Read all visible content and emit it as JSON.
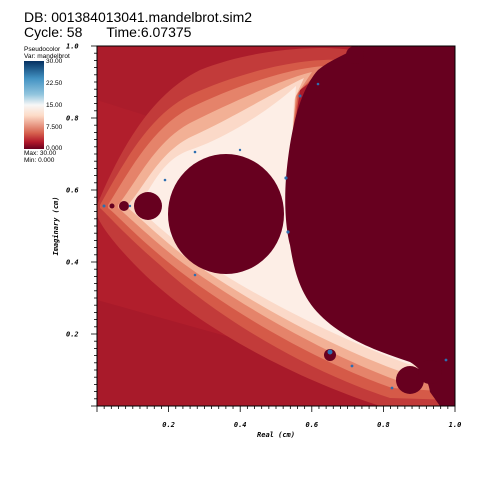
{
  "header": {
    "db_label": "DB: 001384013041.mandelbrot.sim2",
    "cycle_label": "Cycle: 58",
    "time_label": "Time:6.07375"
  },
  "legend": {
    "title": "Pseudocolor",
    "var_label": "Var: mandelbrot",
    "ticks": [
      "30.00",
      "22.50",
      "15.00",
      "7.500",
      "0.000"
    ],
    "max_label": "Max: 30.00",
    "min_label": "Min: 0.000"
  },
  "chart_data": {
    "type": "heatmap",
    "field": "mandelbrot",
    "xlabel": "Real (cm)",
    "ylabel": "Imaginary (cm)",
    "xlim": [
      0.0,
      1.0
    ],
    "ylim": [
      0.0,
      1.0
    ],
    "x_ticks": [
      "0.2",
      "0.4",
      "0.6",
      "0.8",
      "1.0"
    ],
    "y_ticks": [
      "0.2",
      "0.4",
      "0.6",
      "0.8",
      "1.0"
    ],
    "value_range": [
      0,
      30
    ],
    "colormap": [
      "#67001f",
      "#d6604d",
      "#fddbc7",
      "#f7f7f7",
      "#92c5de",
      "#4393c3",
      "#053061"
    ]
  }
}
